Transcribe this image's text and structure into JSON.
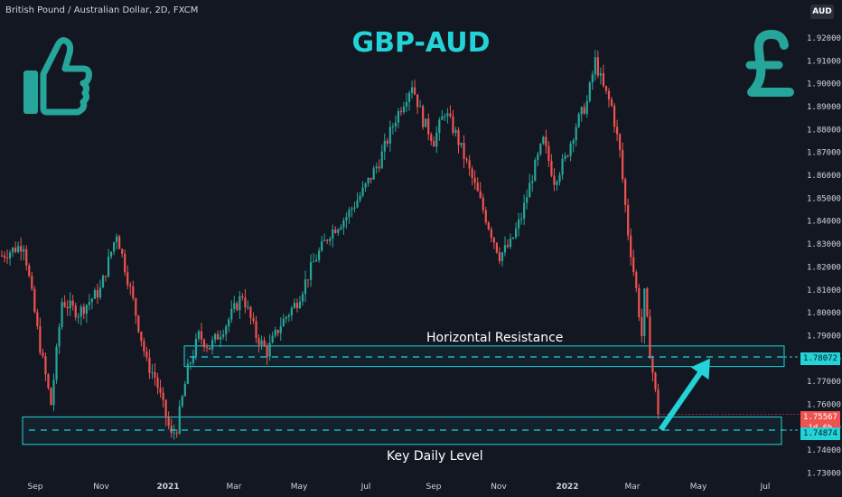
{
  "header": {
    "symbol": "British Pound / Australian Dollar, 2D, FXCM",
    "unit": "AUD"
  },
  "colors": {
    "background": "#131722",
    "up": "#26a69a",
    "down": "#ef5350",
    "accent": "#22d3d8",
    "text": "#d1d4dc"
  },
  "icons": [
    "thumbs-up-icon",
    "pound-sign-icon"
  ],
  "chart_data": {
    "type": "candlestick",
    "title": "GBP-AUD",
    "yticks": [
      "1.92000",
      "1.91000",
      "1.90000",
      "1.89000",
      "1.88000",
      "1.87000",
      "1.86000",
      "1.85000",
      "1.84000",
      "1.83000",
      "1.82000",
      "1.81000",
      "1.80000",
      "1.79000",
      "1.78000",
      "1.77000",
      "1.76000",
      "1.75000",
      "1.74000",
      "1.73000"
    ],
    "ylim": [
      1.73,
      1.925
    ],
    "xticks": [
      "Sep",
      "Nov",
      "2021",
      "Mar",
      "May",
      "Jul",
      "Sep",
      "Nov",
      "2022",
      "Mar",
      "May",
      "Jul"
    ],
    "series": [
      {
        "anchors": [
          {
            "i": 0,
            "v": 1.825
          },
          {
            "i": 8,
            "v": 1.83
          },
          {
            "i": 14,
            "v": 1.785
          },
          {
            "i": 18,
            "v": 1.76
          },
          {
            "i": 22,
            "v": 1.805
          },
          {
            "i": 28,
            "v": 1.8
          },
          {
            "i": 36,
            "v": 1.81
          },
          {
            "i": 42,
            "v": 1.835
          },
          {
            "i": 48,
            "v": 1.805
          },
          {
            "i": 53,
            "v": 1.778
          },
          {
            "i": 56,
            "v": 1.772
          },
          {
            "i": 62,
            "v": 1.746
          },
          {
            "i": 64,
            "v": 1.75
          },
          {
            "i": 68,
            "v": 1.775
          },
          {
            "i": 72,
            "v": 1.79
          },
          {
            "i": 76,
            "v": 1.785
          },
          {
            "i": 82,
            "v": 1.795
          },
          {
            "i": 88,
            "v": 1.808
          },
          {
            "i": 93,
            "v": 1.79
          },
          {
            "i": 97,
            "v": 1.783
          },
          {
            "i": 102,
            "v": 1.795
          },
          {
            "i": 108,
            "v": 1.805
          },
          {
            "i": 114,
            "v": 1.822
          },
          {
            "i": 120,
            "v": 1.835
          },
          {
            "i": 126,
            "v": 1.842
          },
          {
            "i": 132,
            "v": 1.853
          },
          {
            "i": 138,
            "v": 1.866
          },
          {
            "i": 144,
            "v": 1.885
          },
          {
            "i": 150,
            "v": 1.9
          },
          {
            "i": 154,
            "v": 1.884
          },
          {
            "i": 158,
            "v": 1.875
          },
          {
            "i": 162,
            "v": 1.888
          },
          {
            "i": 166,
            "v": 1.878
          },
          {
            "i": 170,
            "v": 1.865
          },
          {
            "i": 174,
            "v": 1.852
          },
          {
            "i": 178,
            "v": 1.838
          },
          {
            "i": 182,
            "v": 1.825
          },
          {
            "i": 186,
            "v": 1.83
          },
          {
            "i": 190,
            "v": 1.842
          },
          {
            "i": 194,
            "v": 1.86
          },
          {
            "i": 198,
            "v": 1.875
          },
          {
            "i": 202,
            "v": 1.858
          },
          {
            "i": 206,
            "v": 1.867
          },
          {
            "i": 210,
            "v": 1.882
          },
          {
            "i": 214,
            "v": 1.892
          },
          {
            "i": 217,
            "v": 1.91
          },
          {
            "i": 220,
            "v": 1.898
          },
          {
            "i": 223,
            "v": 1.89
          },
          {
            "i": 226,
            "v": 1.87
          },
          {
            "i": 229,
            "v": 1.835
          },
          {
            "i": 232,
            "v": 1.81
          },
          {
            "i": 234,
            "v": 1.79
          },
          {
            "i": 235,
            "v": 1.808
          },
          {
            "i": 237,
            "v": 1.783
          },
          {
            "i": 240,
            "v": 1.756
          }
        ],
        "last_close": 1.75567
      }
    ],
    "bar_count": 241,
    "annotations": {
      "resistance_label": "Horizontal Resistance",
      "resistance_level": 1.78072,
      "resistance_zone": [
        1.7765,
        1.7855
      ],
      "key_label": "Key Daily Level",
      "key_level": 1.74874,
      "key_zone": [
        1.7425,
        1.7545
      ],
      "arrow_from": {
        "i": 241,
        "v": 1.749
      },
      "arrow_to": {
        "i": 259,
        "v": 1.78
      }
    },
    "price_labels": {
      "resistance": "1.78072",
      "current": "1.75567",
      "countdown": "1d 6h",
      "key": "1.74874"
    }
  }
}
